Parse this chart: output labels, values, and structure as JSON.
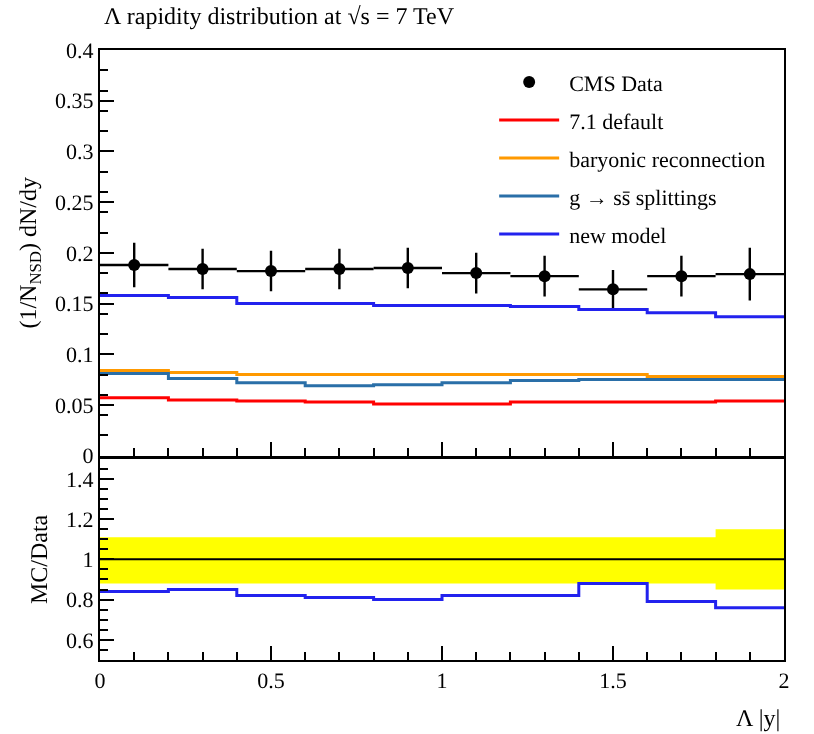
{
  "chart_data": [
    {
      "type": "histogram",
      "title": "Λ rapidity distribution at √s = 7 TeV",
      "ylabel": "(1/N$_{NSD}$) dN/dy",
      "bins": [
        0,
        0.2,
        0.4,
        0.6,
        0.8,
        1.0,
        1.2,
        1.4,
        1.6,
        1.8,
        2.0
      ],
      "xlim": [
        0,
        2
      ],
      "xticks": [
        0,
        0.5,
        1,
        1.5,
        2
      ],
      "ylim": [
        0,
        0.4
      ],
      "yticks": [
        0,
        0.05,
        0.1,
        0.15,
        0.2,
        0.25,
        0.3,
        0.35,
        0.4
      ],
      "tick_labels": "y",
      "legend": "top right",
      "series": [
        {
          "name": "CMS Data",
          "type": "scatter",
          "color": "#000000",
          "marker": "circle",
          "x": [
            0.1,
            0.3,
            0.5,
            0.7,
            0.9,
            1.1,
            1.3,
            1.5,
            1.7,
            1.9
          ],
          "values": [
            0.188,
            0.184,
            0.182,
            0.184,
            0.185,
            0.18,
            0.177,
            0.164,
            0.177,
            0.179
          ],
          "errors": [
            0.022,
            0.02,
            0.02,
            0.02,
            0.02,
            0.02,
            0.02,
            0.019,
            0.02,
            0.026
          ],
          "xerrors": [
            0.1,
            0.1,
            0.1,
            0.1,
            0.1,
            0.1,
            0.1,
            0.1,
            0.1,
            0.1
          ]
        },
        {
          "name": "7.1 default",
          "color": "#ff0000",
          "values": [
            0.057,
            0.055,
            0.054,
            0.053,
            0.051,
            0.051,
            0.053,
            0.053,
            0.053,
            0.054
          ]
        },
        {
          "name": "baryonic reconnection",
          "color": "#ff9900",
          "values": [
            0.084,
            0.082,
            0.08,
            0.08,
            0.08,
            0.08,
            0.08,
            0.08,
            0.078,
            0.078
          ]
        },
        {
          "name": "g → ss̄ splittings",
          "color": "#2a6fa8",
          "values": [
            0.081,
            0.076,
            0.072,
            0.069,
            0.07,
            0.072,
            0.074,
            0.075,
            0.075,
            0.075
          ]
        },
        {
          "name": "new model",
          "color": "#2222ee",
          "values": [
            0.158,
            0.156,
            0.15,
            0.15,
            0.148,
            0.148,
            0.147,
            0.144,
            0.141,
            0.137
          ]
        }
      ]
    },
    {
      "type": "histogram",
      "ylabel": "MC/Data",
      "xlabel": "Λ |y|",
      "bins": [
        0,
        0.2,
        0.4,
        0.6,
        0.8,
        1.0,
        1.2,
        1.4,
        1.6,
        1.8,
        2.0
      ],
      "xlim": [
        0,
        2
      ],
      "xticks": [
        0,
        0.5,
        1,
        1.5,
        2
      ],
      "ylim": [
        0.5,
        1.5
      ],
      "yticks": [
        0.6,
        0.8,
        1,
        1.2,
        1.4
      ],
      "series": [
        {
          "type": "line",
          "color": "#000000",
          "x": [
            0,
            0.2,
            0.4,
            0.6,
            0.8,
            1.0,
            1.2,
            1.4,
            1.6,
            1.8,
            2.0
          ],
          "values": [
            1,
            1,
            1,
            1,
            1,
            1,
            1,
            1,
            1,
            1,
            1
          ],
          "lower": [
            0.88,
            0.88,
            0.88,
            0.88,
            0.88,
            0.88,
            0.88,
            0.88,
            0.88,
            0.85,
            0.85
          ],
          "upper": [
            1.11,
            1.11,
            1.11,
            1.11,
            1.11,
            1.11,
            1.11,
            1.11,
            1.11,
            1.15,
            1.15
          ]
        },
        {
          "color": "#2222ee",
          "values": [
            0.84,
            0.85,
            0.82,
            0.81,
            0.8,
            0.82,
            0.82,
            0.88,
            0.79,
            0.76
          ]
        }
      ]
    }
  ]
}
